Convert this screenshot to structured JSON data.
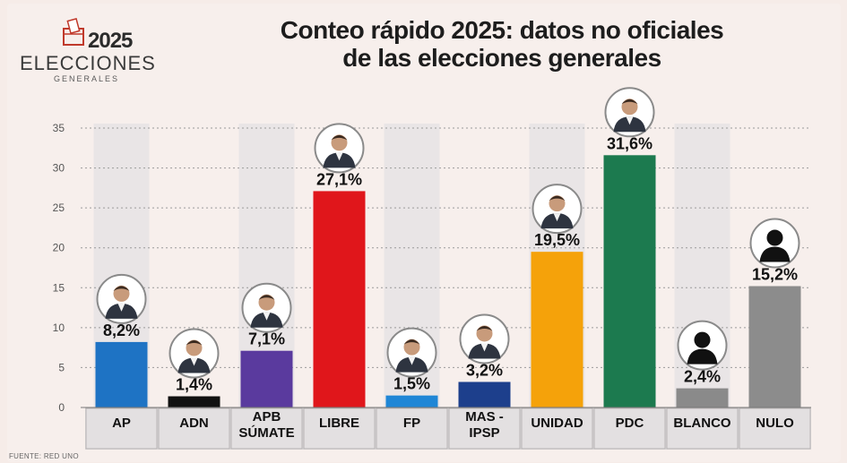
{
  "logo": {
    "year": "2025",
    "word": "ELECCIONES",
    "sub": "GENERALES"
  },
  "title": {
    "line1": "Conteo rápido 2025: datos no oficiales",
    "line2": "de las elecciones generales"
  },
  "source": "FUENTE: RED UNO",
  "colors": {
    "column_bg": "#e9e5e6",
    "AP": "#1e73c4",
    "ADN": "#111111",
    "APB SÚMATE": "#5a3a9e",
    "LIBRE": "#e0161b",
    "FP": "#1f86d6",
    "MAS - IPSP": "#1d3f8c",
    "UNIDAD": "#f5a20a",
    "PDC": "#1c7a4f",
    "BLANCO": "#8a8a8a",
    "NULO": "#8c8c8c"
  },
  "chart_data": {
    "type": "bar",
    "title": "Conteo rápido 2025: datos no oficiales de las elecciones generales",
    "xlabel": "",
    "ylabel": "",
    "ylim": [
      0,
      35
    ],
    "yticks": [
      "0",
      "5",
      "10",
      "15",
      "20",
      "25",
      "30",
      "35"
    ],
    "grid": true,
    "categories": [
      "AP",
      "ADN",
      "APB SÚMATE",
      "LIBRE",
      "FP",
      "MAS - IPSP",
      "UNIDAD",
      "PDC",
      "BLANCO",
      "NULO"
    ],
    "category_lines": [
      [
        "AP"
      ],
      [
        "ADN"
      ],
      [
        "APB",
        "SÚMATE"
      ],
      [
        "LIBRE"
      ],
      [
        "FP"
      ],
      [
        "MAS -",
        "IPSP"
      ],
      [
        "UNIDAD"
      ],
      [
        "PDC"
      ],
      [
        "BLANCO"
      ],
      [
        "NULO"
      ]
    ],
    "values": [
      8.2,
      1.4,
      7.1,
      27.1,
      1.5,
      3.2,
      19.5,
      31.6,
      2.4,
      15.2
    ],
    "labels": [
      "8,2%",
      "1,4%",
      "7,1%",
      "27,1%",
      "1,5%",
      "3,2%",
      "19,5%",
      "31,6%",
      "2,4%",
      "15,2%"
    ],
    "avatars": [
      "person",
      "person",
      "person",
      "person",
      "person",
      "person",
      "person",
      "person",
      "silhouette",
      "silhouette"
    ]
  }
}
